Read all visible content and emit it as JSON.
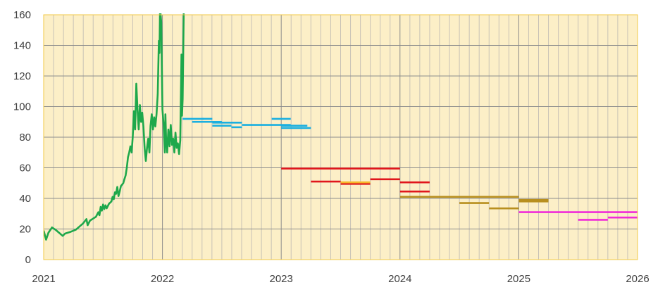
{
  "chart_data": {
    "type": "line",
    "title": "",
    "xlabel": "",
    "ylabel": "",
    "xlim": [
      2021,
      2026
    ],
    "ylim": [
      0,
      160
    ],
    "grid": true,
    "legend": "none",
    "x_ticks": [
      "2021",
      "2022",
      "2023",
      "2024",
      "2025",
      "2026"
    ],
    "y_ticks": [
      "0",
      "20",
      "40",
      "60",
      "80",
      "100",
      "120",
      "140",
      "160"
    ],
    "colors": {
      "plot_background": "#FCEFC7",
      "plot_border": "#F2C846",
      "minor_grid": "#C8C2B6",
      "major_grid": "#8C8C8C",
      "history": "#1EA84B"
    },
    "series": [
      {
        "color": "#1EA84B",
        "kind": "line",
        "points": [
          [
            2021.0,
            19.0
          ],
          [
            2021.02,
            13.0
          ],
          [
            2021.04,
            17.5
          ],
          [
            2021.07,
            21.0
          ],
          [
            2021.1,
            19.5
          ],
          [
            2021.13,
            17.5
          ],
          [
            2021.16,
            15.5
          ],
          [
            2021.18,
            17.0
          ],
          [
            2021.22,
            18.0
          ],
          [
            2021.27,
            19.5
          ],
          [
            2021.3,
            21.5
          ],
          [
            2021.33,
            23.5
          ],
          [
            2021.36,
            26.5
          ],
          [
            2021.37,
            22.5
          ],
          [
            2021.39,
            25.5
          ],
          [
            2021.42,
            27.0
          ],
          [
            2021.44,
            28.0
          ],
          [
            2021.46,
            31.0
          ],
          [
            2021.47,
            29.0
          ],
          [
            2021.48,
            34.5
          ],
          [
            2021.49,
            32.0
          ],
          [
            2021.5,
            36.0
          ],
          [
            2021.51,
            33.0
          ],
          [
            2021.52,
            35.5
          ],
          [
            2021.53,
            33.5
          ],
          [
            2021.55,
            36.5
          ],
          [
            2021.57,
            38.0
          ],
          [
            2021.58,
            41.0
          ],
          [
            2021.59,
            39.5
          ],
          [
            2021.6,
            44.0
          ],
          [
            2021.61,
            43.0
          ],
          [
            2021.62,
            47.5
          ],
          [
            2021.63,
            41.5
          ],
          [
            2021.64,
            44.5
          ],
          [
            2021.65,
            48.0
          ],
          [
            2021.67,
            50.0
          ],
          [
            2021.68,
            52.5
          ],
          [
            2021.69,
            55.0
          ],
          [
            2021.7,
            60.0
          ],
          [
            2021.71,
            67.0
          ],
          [
            2021.72,
            70.0
          ],
          [
            2021.73,
            74.0
          ],
          [
            2021.74,
            70.0
          ],
          [
            2021.75,
            80.0
          ],
          [
            2021.76,
            97.0
          ],
          [
            2021.77,
            85.0
          ],
          [
            2021.78,
            115.0
          ],
          [
            2021.79,
            98.0
          ],
          [
            2021.8,
            85.0
          ],
          [
            2021.81,
            101.0
          ],
          [
            2021.82,
            90.0
          ],
          [
            2021.83,
            96.0
          ],
          [
            2021.84,
            87.0
          ],
          [
            2021.85,
            73.0
          ],
          [
            2021.86,
            64.5
          ],
          [
            2021.87,
            73.0
          ],
          [
            2021.88,
            79.0
          ],
          [
            2021.89,
            70.0
          ],
          [
            2021.9,
            87.5
          ],
          [
            2021.91,
            95.0
          ],
          [
            2021.92,
            85.0
          ],
          [
            2021.93,
            93.0
          ],
          [
            2021.94,
            87.0
          ],
          [
            2021.95,
            95.0
          ],
          [
            2021.96,
            108.0
          ],
          [
            2021.97,
            143.0
          ],
          [
            2021.975,
            135.0
          ],
          [
            2021.98,
            165.0
          ],
          [
            2021.99,
            155.0
          ],
          [
            2022.0,
            98.0
          ],
          [
            2022.01,
            88.0
          ],
          [
            2022.02,
            70.0
          ],
          [
            2022.025,
            95.0
          ],
          [
            2022.03,
            80.0
          ],
          [
            2022.04,
            70.0
          ],
          [
            2022.05,
            85.0
          ],
          [
            2022.06,
            74.0
          ],
          [
            2022.07,
            88.0
          ],
          [
            2022.08,
            75.0
          ],
          [
            2022.09,
            79.0
          ],
          [
            2022.1,
            70.0
          ],
          [
            2022.11,
            83.0
          ],
          [
            2022.12,
            73.0
          ],
          [
            2022.13,
            76.0
          ],
          [
            2022.14,
            69.0
          ],
          [
            2022.15,
            78.0
          ],
          [
            2022.16,
            134.0
          ],
          [
            2022.165,
            94.0
          ],
          [
            2022.17,
            105.0
          ],
          [
            2022.175,
            135.0
          ],
          [
            2022.18,
            165.0
          ]
        ]
      },
      {
        "color": "#1AAFE0",
        "kind": "segments",
        "segments": [
          [
            2022.17,
            2022.35,
            92.0
          ],
          [
            2022.25,
            2022.5,
            90.0
          ],
          [
            2022.33,
            2022.42,
            92.0
          ],
          [
            2022.42,
            2022.67,
            89.5
          ],
          [
            2022.42,
            2022.58,
            87.5
          ],
          [
            2022.58,
            2022.67,
            86.5
          ],
          [
            2022.67,
            2023.08,
            88.0
          ],
          [
            2022.92,
            2023.08,
            92.0
          ],
          [
            2023.0,
            2023.22,
            87.5
          ],
          [
            2023.0,
            2023.25,
            86.0
          ]
        ]
      },
      {
        "color": "#E0161C",
        "kind": "segments",
        "segments": [
          [
            2023.0,
            2024.0,
            59.5
          ],
          [
            2023.25,
            2023.5,
            51.0
          ],
          [
            2023.5,
            2023.75,
            49.5
          ],
          [
            2023.75,
            2024.0,
            52.5
          ],
          [
            2024.0,
            2024.25,
            50.5
          ],
          [
            2024.0,
            2024.25,
            44.5
          ]
        ]
      },
      {
        "color": "#F5B82A",
        "kind": "segments",
        "segments": [
          [
            2023.5,
            2023.75,
            50.5
          ]
        ]
      },
      {
        "color": "#B88F1E",
        "kind": "segments",
        "segments": [
          [
            2024.0,
            2025.0,
            41.0
          ],
          [
            2024.5,
            2024.75,
            37.0
          ],
          [
            2024.75,
            2025.0,
            33.5
          ],
          [
            2025.0,
            2025.25,
            39.0
          ],
          [
            2025.0,
            2025.25,
            38.0
          ]
        ]
      },
      {
        "color": "#F02BD8",
        "kind": "segments",
        "segments": [
          [
            2025.0,
            2026.0,
            31.0
          ],
          [
            2025.5,
            2025.75,
            26.0
          ],
          [
            2025.75,
            2026.0,
            27.5
          ]
        ]
      }
    ]
  }
}
